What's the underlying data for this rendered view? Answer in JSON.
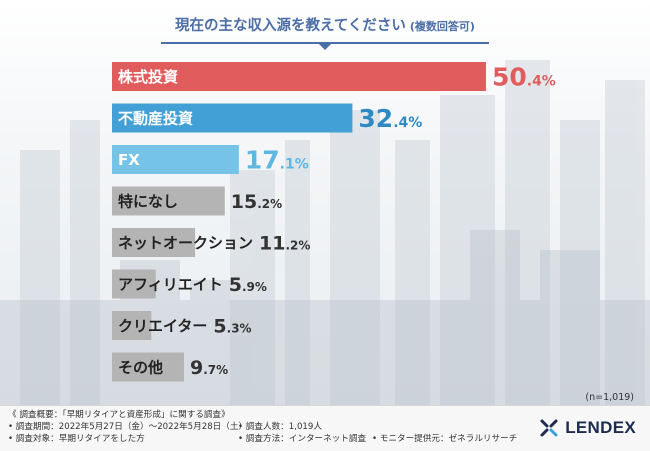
{
  "title": "現在の主な収入源を教えてください",
  "title_sub": "(複数回答可)",
  "sample_size": "(n=1,019)",
  "chart_data": {
    "type": "bar",
    "orientation": "horizontal",
    "title": "現在の主な収入源を教えてください (複数回答可)",
    "unit": "%",
    "categories": [
      "株式投資",
      "不動産投資",
      "FX",
      "特になし",
      "ネットオークション",
      "アフィリエイト",
      "クリエイター",
      "その他"
    ],
    "values": [
      50.4,
      32.4,
      17.1,
      15.2,
      11.2,
      5.9,
      5.3,
      9.7
    ],
    "colors": [
      "#e15d5d",
      "#43a0d6",
      "#76c3e8",
      "#b4b4b4",
      "#b4b4b4",
      "#b4b4b4",
      "#b4b4b4",
      "#b4b4b4"
    ],
    "value_colors": [
      "#e15d5d",
      "#2f8ac4",
      "#5db7e3",
      "#333333",
      "#333333",
      "#333333",
      "#333333",
      "#333333"
    ]
  },
  "footer": {
    "heading": "《 調査概要：「早期リタイアと資産形成」に関する調査》",
    "period": "• 調査期間：2022年5月27日（金）～2022年5月28日（土）",
    "people": "• 調査人数：1,019人",
    "target": "• 調査対象：早期リタイアをした方",
    "method": "• 調査方法：インターネット調査",
    "monitor": "• モニター提供元：ゼネラルリサーチ"
  },
  "logo": {
    "text": "LENDEX"
  }
}
